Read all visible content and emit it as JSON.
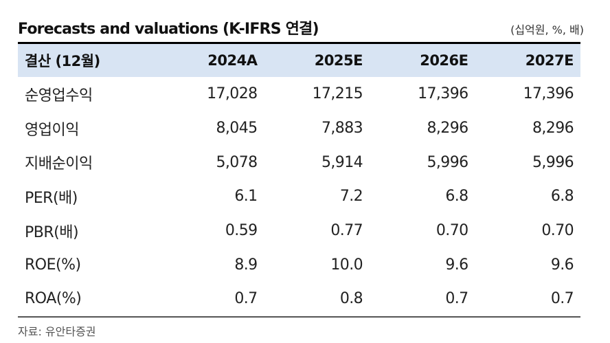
{
  "title": "Forecasts and valuations (K-IFRS 연결)",
  "unit": "(십억원, %, 배)",
  "table": {
    "headers": [
      "결산 (12월)",
      "2024A",
      "2025E",
      "2026E",
      "2027E"
    ],
    "rows": [
      {
        "label": "순영업수익",
        "values": [
          "17,028",
          "17,215",
          "17,396",
          "17,396"
        ]
      },
      {
        "label": "영업이익",
        "values": [
          "8,045",
          "7,883",
          "8,296",
          "8,296"
        ]
      },
      {
        "label": "지배순이익",
        "values": [
          "5,078",
          "5,914",
          "5,996",
          "5,996"
        ]
      },
      {
        "label": "PER(배)",
        "values": [
          "6.1",
          "7.2",
          "6.8",
          "6.8"
        ]
      },
      {
        "label": "PBR(배)",
        "values": [
          "0.59",
          "0.77",
          "0.70",
          "0.70"
        ]
      },
      {
        "label": "ROE(%)",
        "values": [
          "8.9",
          "10.0",
          "9.6",
          "9.6"
        ]
      },
      {
        "label": "ROA(%)",
        "values": [
          "0.7",
          "0.8",
          "0.7",
          "0.7"
        ]
      }
    ]
  },
  "source": "자료: 유안타증권"
}
